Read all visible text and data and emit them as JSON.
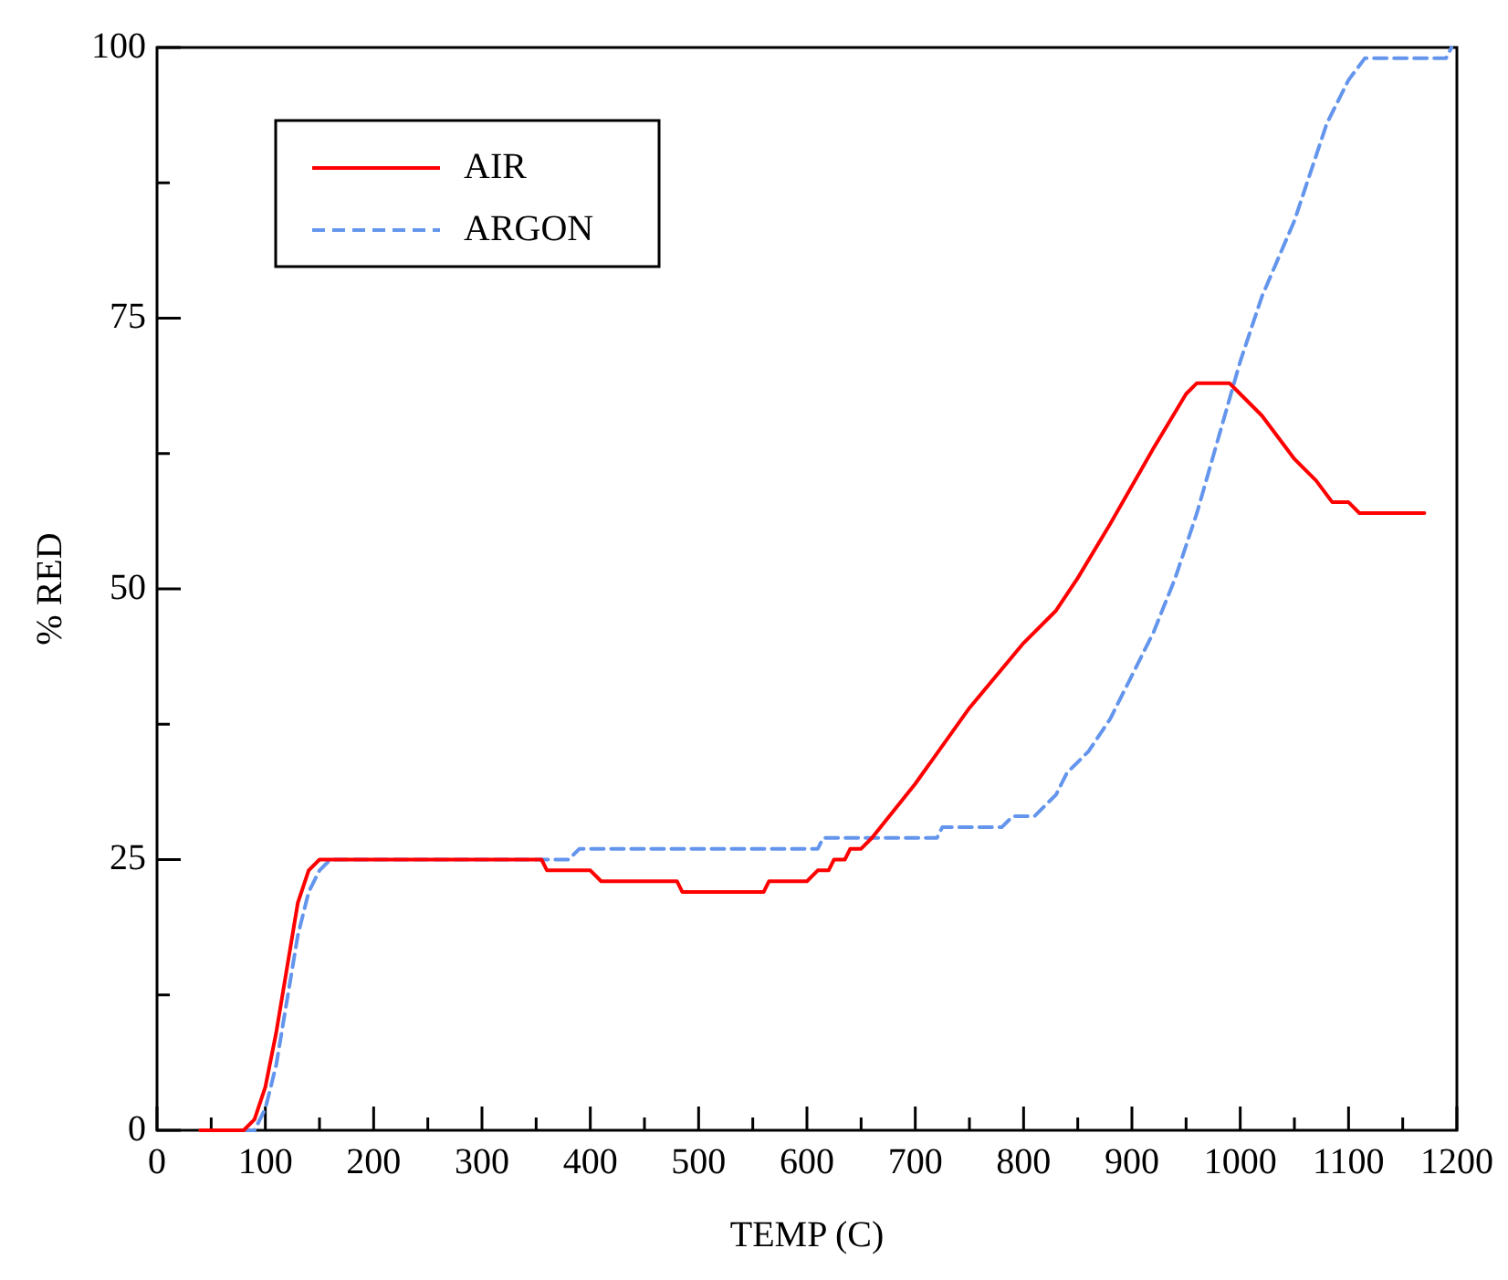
{
  "chart_data": {
    "type": "line",
    "xlabel": "TEMP (C)",
    "ylabel": "% RED",
    "xlim": [
      0,
      1200
    ],
    "ylim": [
      0,
      100
    ],
    "xticks": [
      0,
      {
        "value": 50,
        "label": null
      },
      100,
      {
        "value": 150,
        "label": null
      },
      200,
      {
        "value": 250,
        "label": null
      },
      300,
      {
        "value": 350,
        "label": null
      },
      400,
      {
        "value": 450,
        "label": null
      },
      500,
      {
        "value": 550,
        "label": null
      },
      600,
      {
        "value": 650,
        "label": null
      },
      700,
      {
        "value": 750,
        "label": null
      },
      800,
      {
        "value": 850,
        "label": null
      },
      900,
      {
        "value": 950,
        "label": null
      },
      1000,
      {
        "value": 1050,
        "label": null
      },
      1100,
      {
        "value": 1150,
        "label": null
      },
      1200
    ],
    "yticks": [
      0,
      {
        "value": 12.5,
        "label": null
      },
      25,
      {
        "value": 37.5,
        "label": null
      },
      50,
      {
        "value": 62.5,
        "label": null
      },
      75,
      {
        "value": 87.5,
        "label": null
      },
      100
    ],
    "grid": false,
    "legend": "top left",
    "marker": "none",
    "series": [
      {
        "name": "AIR",
        "color": "#ff0000",
        "line_style": "solid",
        "x": [
          40,
          80,
          90,
          100,
          110,
          120,
          130,
          140,
          150,
          355,
          360,
          400,
          410,
          480,
          485,
          560,
          565,
          600,
          610,
          620,
          625,
          635,
          640,
          650,
          660,
          700,
          750,
          800,
          830,
          850,
          880,
          920,
          950,
          960,
          990,
          1000,
          1020,
          1050,
          1070,
          1085,
          1100,
          1110,
          1170
        ],
        "values": [
          0,
          0,
          1,
          4,
          9,
          15,
          21,
          24,
          25,
          25,
          24,
          24,
          23,
          23,
          22,
          22,
          23,
          23,
          24,
          24,
          25,
          25,
          26,
          26,
          27,
          32,
          39,
          45,
          48,
          51,
          56,
          63,
          68,
          69,
          69,
          68,
          66,
          62,
          60,
          58,
          58,
          57,
          57
        ]
      },
      {
        "name": "ARGON",
        "color": "#6495ed",
        "line_style": "dashed",
        "x": [
          60,
          90,
          100,
          110,
          120,
          130,
          140,
          150,
          160,
          380,
          390,
          610,
          615,
          720,
          725,
          780,
          790,
          810,
          820,
          830,
          840,
          860,
          880,
          900,
          920,
          940,
          960,
          980,
          1000,
          1020,
          1050,
          1080,
          1100,
          1115,
          1190,
          1195
        ],
        "values": [
          0,
          0,
          2,
          6,
          12,
          18,
          22,
          24,
          25,
          25,
          26,
          26,
          27,
          27,
          28,
          28,
          29,
          29,
          30,
          31,
          33,
          35,
          38,
          42,
          46,
          51,
          57,
          64,
          71,
          77,
          84,
          93,
          97,
          99,
          99,
          100
        ]
      }
    ]
  }
}
